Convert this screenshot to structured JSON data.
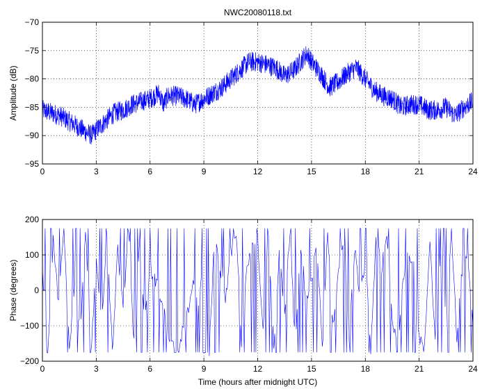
{
  "chart_data": [
    {
      "type": "line",
      "title": "NWC20080118.txt",
      "xlabel": "",
      "ylabel": "Amplitude (dB)",
      "xlim": [
        0,
        24
      ],
      "ylim": [
        -95,
        -70
      ],
      "xticks": [
        0,
        3,
        6,
        9,
        12,
        15,
        18,
        21,
        24
      ],
      "yticks": [
        -95,
        -90,
        -85,
        -80,
        -75,
        -70
      ],
      "xtick_labels": [
        "0",
        "3",
        "6",
        "9",
        "12",
        "15",
        "18",
        "21",
        "24"
      ],
      "ytick_labels": [
        "−95",
        "−90",
        "−85",
        "−80",
        "−75",
        "−70"
      ],
      "grid": true,
      "series": [
        {
          "color": "#0000ff",
          "x": [
            0,
            0.5,
            1,
            1.5,
            2,
            2.5,
            2.75,
            3,
            3.5,
            4,
            4.5,
            5,
            5.5,
            6,
            6.5,
            6.75,
            7,
            7.5,
            8,
            8.5,
            9,
            9.5,
            10,
            10.5,
            11,
            11.5,
            12,
            12.5,
            13,
            13.5,
            14,
            14.5,
            14.75,
            15,
            15.5,
            16,
            16.5,
            17,
            17.5,
            18,
            18.5,
            19,
            19.5,
            20,
            20.5,
            21,
            21.5,
            22,
            22.5,
            23,
            23.5,
            24
          ],
          "y": [
            -85.5,
            -86,
            -86.5,
            -87.5,
            -88.5,
            -89.5,
            -90,
            -89,
            -87.5,
            -86,
            -85.5,
            -84.5,
            -84,
            -83.5,
            -82.5,
            -84.5,
            -83,
            -83,
            -83.5,
            -84.5,
            -83.5,
            -82.5,
            -81.5,
            -80,
            -78.5,
            -77,
            -77,
            -77.5,
            -78,
            -79.5,
            -78.5,
            -76.5,
            -75.5,
            -77,
            -79,
            -81.5,
            -80.5,
            -79,
            -78,
            -80,
            -82,
            -83,
            -83.5,
            -85,
            -84.5,
            -84.5,
            -85.5,
            -85.5,
            -85,
            -86.5,
            -85,
            -84
          ]
        }
      ]
    },
    {
      "type": "line",
      "title": "",
      "xlabel": "Time (hours after midnight UTC)",
      "ylabel": "Phase (degrees)",
      "xlim": [
        0,
        24
      ],
      "ylim": [
        -200,
        200
      ],
      "xticks": [
        0,
        3,
        6,
        9,
        12,
        15,
        18,
        21,
        24
      ],
      "yticks": [
        -200,
        -100,
        0,
        100,
        200
      ],
      "xtick_labels": [
        "0",
        "3",
        "6",
        "9",
        "12",
        "15",
        "18",
        "21",
        "24"
      ],
      "ytick_labels": [
        "−200",
        "−100",
        "0",
        "100",
        "200"
      ],
      "grid": true,
      "series": [
        {
          "color": "#0000ff",
          "x": [
            0,
            0.3,
            0.6,
            0.9,
            1.2,
            1.5,
            1.8,
            2.1,
            2.4,
            2.7,
            3.0,
            3.3,
            3.6,
            3.9,
            4.2,
            4.5,
            4.8,
            5.1,
            5.4,
            5.7,
            6.0,
            6.3,
            6.6,
            6.9,
            7.2,
            7.5,
            7.8,
            8.1,
            8.4,
            8.7,
            9.0,
            9.3,
            9.6,
            9.9,
            10.2,
            10.5,
            10.8,
            11.1,
            11.4,
            11.7,
            12.0,
            12.3,
            12.6,
            12.9,
            13.2,
            13.5,
            13.8,
            14.1,
            14.4,
            14.7,
            15.0,
            15.3,
            15.6,
            15.9,
            16.2,
            16.5,
            16.8,
            17.1,
            17.4,
            17.7,
            18.0,
            18.3,
            18.6,
            18.9,
            19.2,
            19.5,
            19.8,
            20.1,
            20.4,
            20.7,
            21.0,
            21.3,
            21.6,
            21.9,
            22.2,
            22.5,
            22.8,
            23.1,
            23.4,
            23.7,
            24.0
          ],
          "y": [
            60,
            -170,
            150,
            -40,
            175,
            -160,
            30,
            -120,
            170,
            -175,
            80,
            -90,
            160,
            -170,
            120,
            -60,
            175,
            -150,
            140,
            -100,
            60,
            30,
            -20,
            -90,
            -150,
            -170,
            -120,
            -60,
            10,
            -40,
            90,
            -170,
            150,
            60,
            -20,
            100,
            170,
            -140,
            60,
            120,
            150,
            -120,
            170,
            -170,
            100,
            -60,
            160,
            -170,
            130,
            -30,
            20,
            140,
            -170,
            170,
            -100,
            60,
            160,
            -150,
            120,
            -30,
            90,
            -170,
            160,
            60,
            150,
            -80,
            -160,
            40,
            110,
            80,
            -130,
            -170,
            150,
            -150,
            100,
            -90,
            170,
            -140,
            60,
            90,
            -100
          ]
        }
      ]
    }
  ]
}
